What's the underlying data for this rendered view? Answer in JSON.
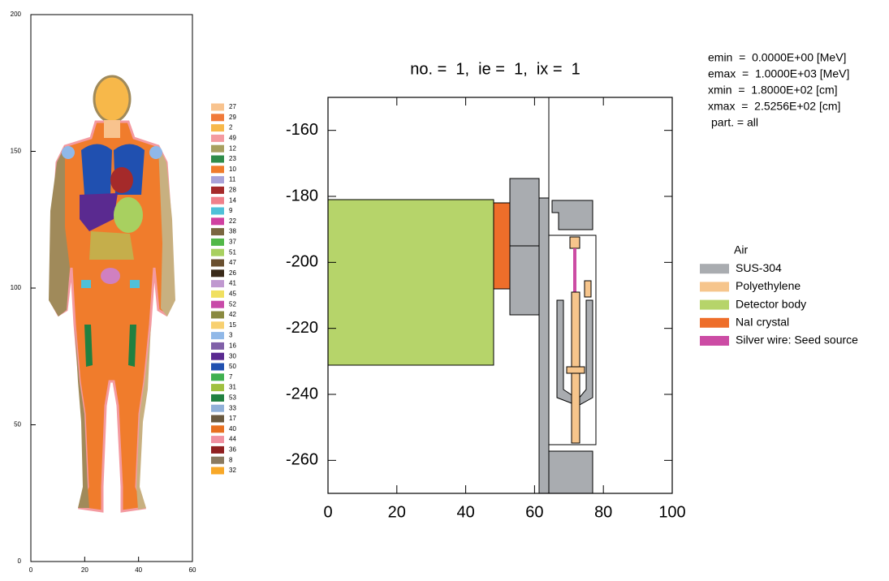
{
  "left_panel": {
    "xlim": [
      0,
      60
    ],
    "ylim": [
      0,
      200
    ],
    "xticks": [
      0,
      20,
      40,
      60
    ],
    "yticks": [
      0,
      50,
      100,
      150,
      200
    ],
    "legend": [
      {
        "label": "27",
        "color": "#f8c38e"
      },
      {
        "label": "29",
        "color": "#f07a3a"
      },
      {
        "label": "2",
        "color": "#f7b84a"
      },
      {
        "label": "49",
        "color": "#f49aa0"
      },
      {
        "label": "12",
        "color": "#a8a060"
      },
      {
        "label": "23",
        "color": "#2f8c4a"
      },
      {
        "label": "10",
        "color": "#f07c2c"
      },
      {
        "label": "11",
        "color": "#a9a2d8"
      },
      {
        "label": "28",
        "color": "#a52a2a"
      },
      {
        "label": "14",
        "color": "#f0808a"
      },
      {
        "label": "9",
        "color": "#4fc0d8"
      },
      {
        "label": "22",
        "color": "#d040a0"
      },
      {
        "label": "38",
        "color": "#7a6640"
      },
      {
        "label": "37",
        "color": "#52b848"
      },
      {
        "label": "51",
        "color": "#a8d060"
      },
      {
        "label": "47",
        "color": "#6a5030"
      },
      {
        "label": "26",
        "color": "#3a2a1a"
      },
      {
        "label": "41",
        "color": "#c098d0"
      },
      {
        "label": "45",
        "color": "#f0e060"
      },
      {
        "label": "52",
        "color": "#c84aa8"
      },
      {
        "label": "42",
        "color": "#8a8a40"
      },
      {
        "label": "15",
        "color": "#f8d070"
      },
      {
        "label": "3",
        "color": "#90b8e8"
      },
      {
        "label": "16",
        "color": "#8060a8"
      },
      {
        "label": "30",
        "color": "#5a2a90"
      },
      {
        "label": "50",
        "color": "#2050b0"
      },
      {
        "label": "7",
        "color": "#40b050"
      },
      {
        "label": "31",
        "color": "#a0c040"
      },
      {
        "label": "53",
        "color": "#208040"
      },
      {
        "label": "33",
        "color": "#90b0d8"
      },
      {
        "label": "17",
        "color": "#6a5a40"
      },
      {
        "label": "40",
        "color": "#e87020"
      },
      {
        "label": "44",
        "color": "#f090a0"
      },
      {
        "label": "36",
        "color": "#902020"
      },
      {
        "label": "8",
        "color": "#8a7a60"
      },
      {
        "label": "32",
        "color": "#f8a828"
      }
    ]
  },
  "right_panel": {
    "title": "no. =  1,  ie =  1,  ix =  1",
    "xlim": [
      0,
      100
    ],
    "ylim": [
      -270,
      -150
    ],
    "xticks": [
      0,
      20,
      40,
      60,
      80,
      100
    ],
    "yticks": [
      -160,
      -180,
      -200,
      -220,
      -240,
      -260
    ],
    "info": [
      "emin  =  0.0000E+00 [MeV]",
      "emax  =  1.0000E+03 [MeV]",
      "xmin  =  1.8000E+02 [cm]",
      "xmax  =  2.5256E+02 [cm]",
      "part. = all"
    ],
    "legend": [
      {
        "label": "Air"
      },
      {
        "label": "SUS-304",
        "color": "#a9acb0"
      },
      {
        "label": "Polyethylene",
        "color": "#f6c58c"
      },
      {
        "label": "Detector body",
        "color": "#b6d46a"
      },
      {
        "label": "NaI crystal",
        "color": "#ee6e2a"
      },
      {
        "label": "Silver wire: Seed source",
        "color": "#cc4ca4"
      }
    ]
  }
}
